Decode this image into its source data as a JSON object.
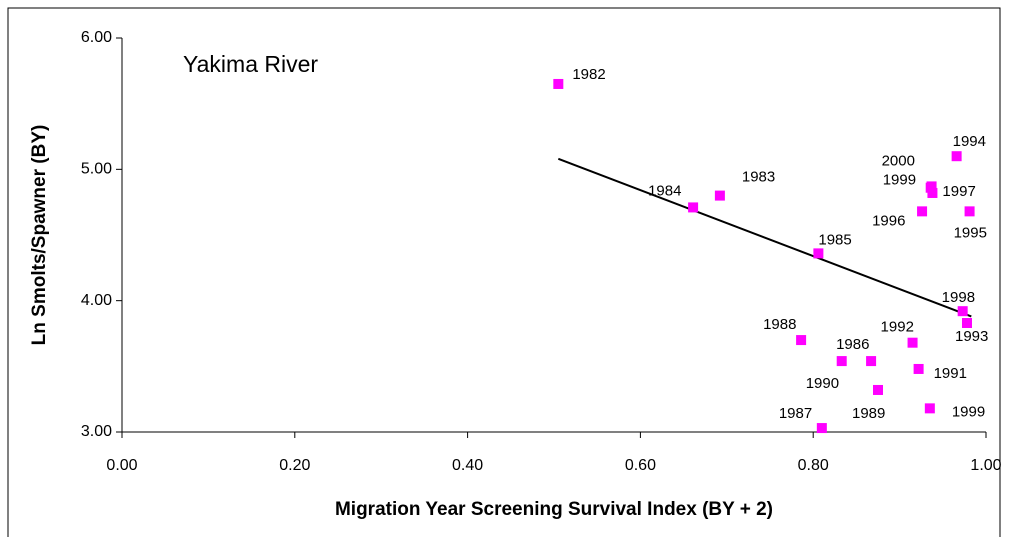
{
  "chart_data": {
    "type": "scatter",
    "title": "Yakima River",
    "xlabel": "Migration Year Screening Survival Index (BY + 2)",
    "ylabel": "Ln Smolts/Spawner (BY)",
    "labels": [
      "1982",
      "1983",
      "1984",
      "1985",
      "1986",
      "1987",
      "1988",
      "1989",
      "1990",
      "1991",
      "1992",
      "1993",
      "1994",
      "1995",
      "1996",
      "1997",
      "1998",
      "1999",
      "1999",
      "2000"
    ],
    "x": [
      0.505,
      0.692,
      0.661,
      0.806,
      0.867,
      0.81,
      0.786,
      0.875,
      0.833,
      0.922,
      0.915,
      0.978,
      0.966,
      0.981,
      0.926,
      0.938,
      0.973,
      0.936,
      0.935,
      0.937
    ],
    "y": [
      5.65,
      4.8,
      4.71,
      4.36,
      3.54,
      3.03,
      3.7,
      3.32,
      3.54,
      3.48,
      3.68,
      3.83,
      5.1,
      4.68,
      4.68,
      4.82,
      3.92,
      4.86,
      3.18,
      4.87
    ],
    "color": "#ff00ff",
    "trendline": {
      "x": [
        0.505,
        0.983
      ],
      "y": [
        5.08,
        3.88
      ],
      "color": "#000000"
    },
    "xlim": [
      0,
      1
    ],
    "ylim": [
      3,
      6
    ],
    "xticks": [
      {
        "value": 0,
        "label": "0.00"
      },
      {
        "value": 0.2,
        "label": "0.20"
      },
      {
        "value": 0.4,
        "label": "0.40"
      },
      {
        "value": 0.6,
        "label": "0.60"
      },
      {
        "value": 0.8,
        "label": "0.80"
      },
      {
        "value": 1,
        "label": "1.00"
      }
    ],
    "yticks": [
      {
        "value": 3,
        "label": "3.00"
      },
      {
        "value": 4,
        "label": "4.00"
      },
      {
        "value": 5,
        "label": "5.00"
      },
      {
        "value": 6,
        "label": "6.00"
      }
    ],
    "grid": false
  }
}
